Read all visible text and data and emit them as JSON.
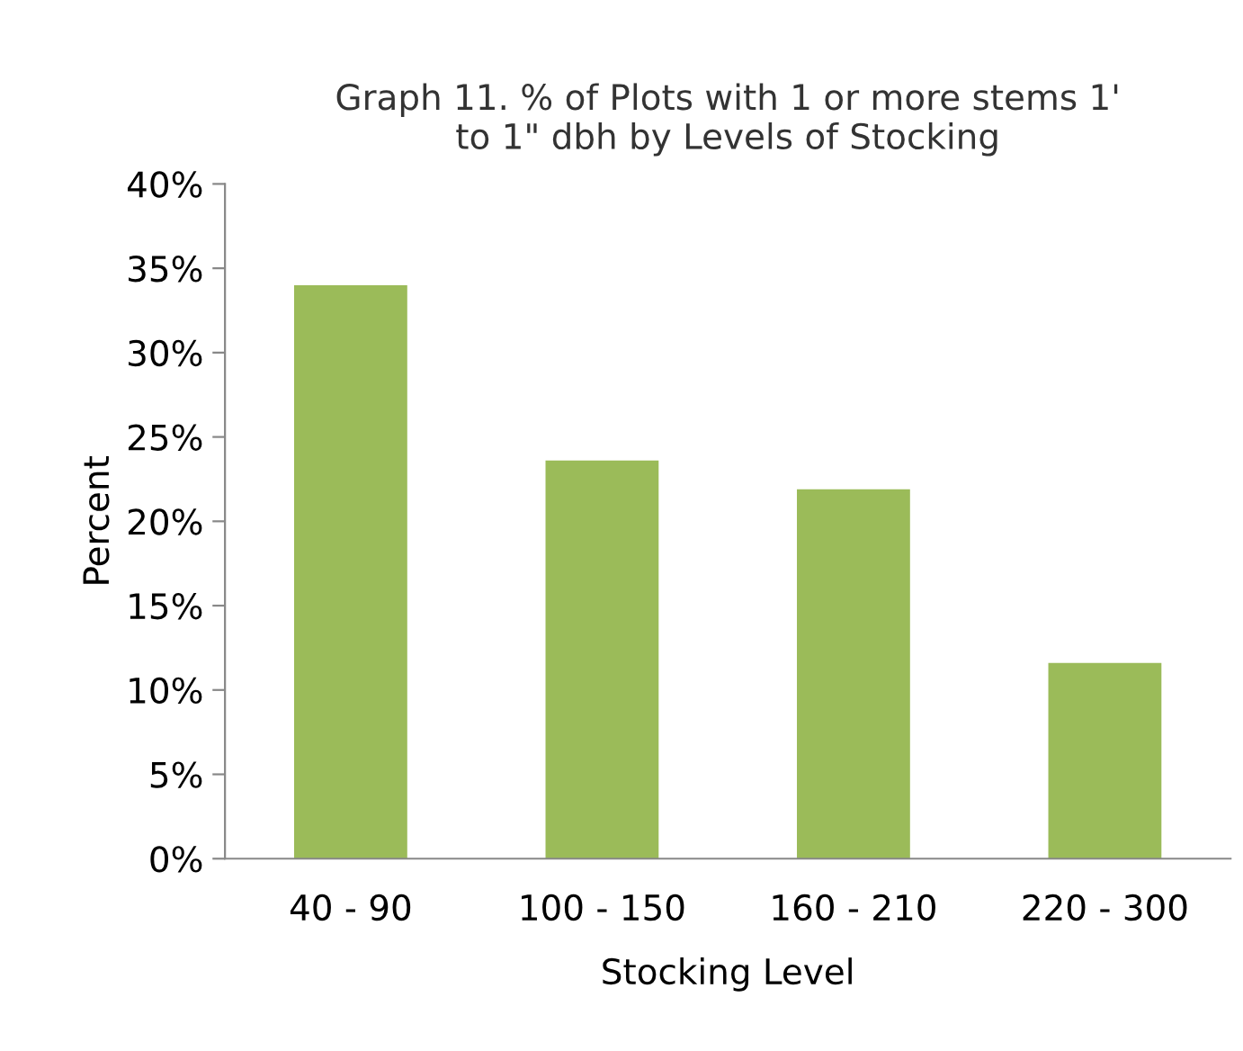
{
  "chart_data": {
    "type": "bar",
    "title": "Graph 11. % of Plots with 1 or more stems 1'\nto 1\" dbh by Levels of Stocking",
    "xlabel": "Stocking Level",
    "ylabel": "Percent",
    "categories": [
      "40 - 90",
      "100 - 150",
      "160 - 210",
      "220 - 300"
    ],
    "values": [
      34.0,
      23.6,
      21.9,
      11.6
    ],
    "color": "#9bbb59",
    "ylim": [
      0,
      40
    ],
    "yticks": [
      {
        "value": 0,
        "label": "0%"
      },
      {
        "value": 5,
        "label": "5%"
      },
      {
        "value": 10,
        "label": "10%"
      },
      {
        "value": 15,
        "label": "15%"
      },
      {
        "value": 20,
        "label": "20%"
      },
      {
        "value": 25,
        "label": "25%"
      },
      {
        "value": 30,
        "label": "30%"
      },
      {
        "value": 35,
        "label": "35%"
      },
      {
        "value": 40,
        "label": "40%"
      }
    ],
    "grid": false,
    "legend": false
  }
}
